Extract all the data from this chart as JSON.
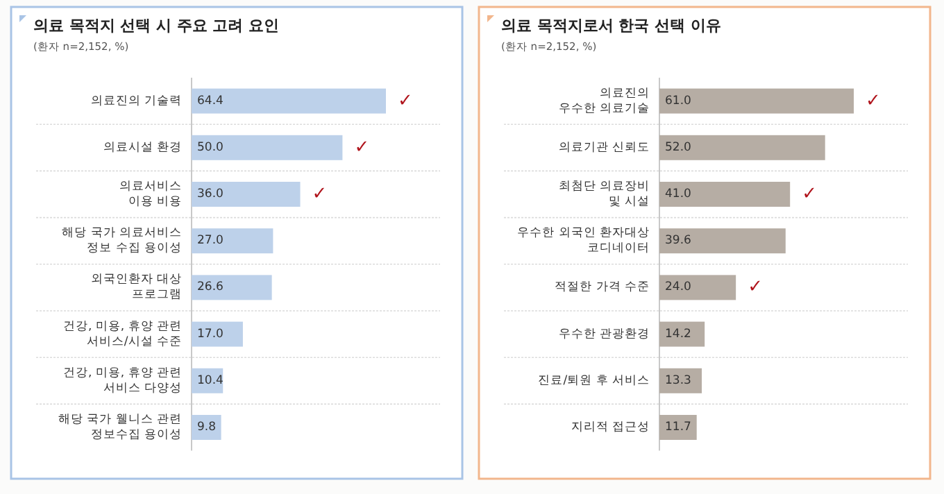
{
  "chart_data": [
    {
      "type": "bar",
      "orientation": "horizontal",
      "title": "의료 목적지 선택 시 주요 고려 요인",
      "subtitle": "(환자 n=2,152, %)",
      "categories": [
        "의료진의 기술력",
        "의료시설 환경",
        "의료서비스\n이용 비용",
        "해당 국가 의료서비스\n정보 수집 용이성",
        "외국인환자 대상\n프로그램",
        "건강, 미용, 휴양 관련\n서비스/시설 수준",
        "건강, 미용, 휴양 관련\n서비스 다양성",
        "해당 국가 웰니스 관련\n정보수집 용이성"
      ],
      "values": [
        64.4,
        50.0,
        36.0,
        27.0,
        26.6,
        17.0,
        10.4,
        9.8
      ],
      "value_labels": [
        "64.4",
        "50.0",
        "36.0",
        "27.0",
        "26.6",
        "17.0",
        "10.4",
        "9.8"
      ],
      "color": "#bdd1ea",
      "grid": "y",
      "annotations": [
        {
          "text": "✓",
          "x": 64.4,
          "y": "의료진의 기술력"
        },
        {
          "text": "✓",
          "x": 50.0,
          "y": "의료시설 환경"
        },
        {
          "text": "✓",
          "x": 36.0,
          "y": "의료서비스\n이용 비용"
        }
      ]
    },
    {
      "type": "bar",
      "orientation": "horizontal",
      "title": "의료 목적지로서 한국 선택 이유",
      "subtitle": "(환자 n=2,152, %)",
      "categories": [
        "의료진의\n우수한 의료기술",
        "의료기관 신뢰도",
        "최첨단 의료장비\n및 시설",
        "우수한 외국인 환자대상\n코디네이터",
        "적절한 가격 수준",
        "우수한 관광환경",
        "진료/퇴원 후 서비스",
        "지리적 접근성"
      ],
      "values": [
        61.0,
        52.0,
        41.0,
        39.6,
        24.0,
        14.2,
        13.3,
        11.7
      ],
      "value_labels": [
        "61.0",
        "52.0",
        "41.0",
        "39.6",
        "24.0",
        "14.2",
        "13.3",
        "11.7"
      ],
      "color": "#b6ada4",
      "grid": "y",
      "annotations": [
        {
          "text": "✓",
          "x": 61.0,
          "y": "의료진의\n우수한 의료기술"
        },
        {
          "text": "✓",
          "x": 41.0,
          "y": "최첨단 의료장비\n및 시설"
        },
        {
          "text": "✓",
          "x": 24.0,
          "y": "적절한 가격 수준"
        }
      ]
    }
  ]
}
